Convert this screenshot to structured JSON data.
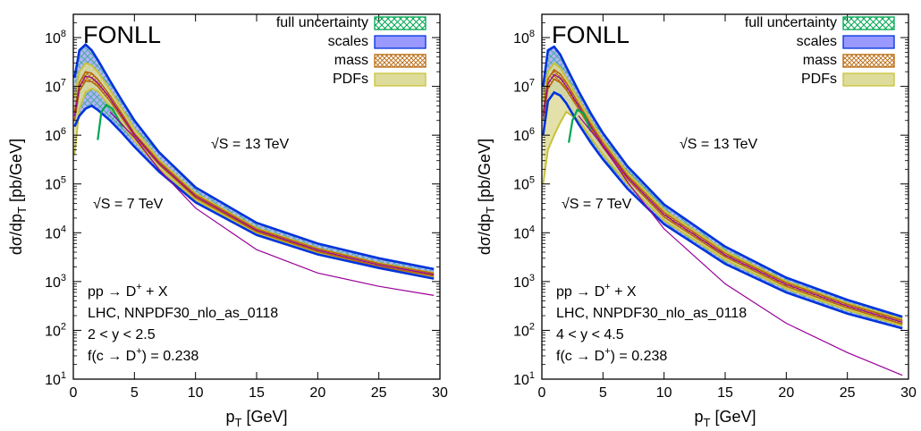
{
  "colors": {
    "full": "#00a651",
    "scales": "#0033dd",
    "scales_fill": "#9999ff",
    "mass": "#b8660b",
    "pdf": "#c8c23a",
    "pdf_fill": "#dedc9a",
    "purple": "#990099"
  },
  "chart_data": [
    {
      "type": "area",
      "title": "FONLL",
      "xlabel_main": "p",
      "xlabel_sub": "T",
      "xlabel_unit": " [GeV]",
      "ylabel_main": "dσ/dp",
      "ylabel_sub": "T",
      "ylabel_unit": " [pb/GeV]",
      "x_ticks": [
        "0",
        "5",
        "10",
        "15",
        "20",
        "25",
        "30"
      ],
      "y_ticks": [
        "10",
        "10",
        "10",
        "10",
        "10",
        "10",
        "10",
        "10"
      ],
      "y_tick_exponents": [
        "1",
        "2",
        "3",
        "4",
        "5",
        "6",
        "7",
        "8"
      ],
      "xlim": [
        0,
        30
      ],
      "ylim": [
        10,
        300000000
      ],
      "log_y": true,
      "legend": [
        "full uncertainty",
        "scales",
        "mass",
        "PDFs"
      ],
      "legend_position": "top-right",
      "annotations": {
        "energy_13": "√S = 13 TeV",
        "energy_7": "√S = 7 TeV",
        "process": "pp → D",
        "process_sup": "+",
        "process_tail": " + X",
        "config": "LHC, NNPDF30_nlo_as_0118",
        "rapidity": "2 < y < 2.5",
        "frag": "f(c → D",
        "frag_sup": "+",
        "frag_tail": ") = 0.238"
      },
      "series": [
        {
          "name": "scales",
          "x": [
            0.1,
            0.5,
            1,
            1.5,
            2,
            3,
            4,
            5,
            7,
            10,
            15,
            20,
            25,
            29.5
          ],
          "upper": [
            15000000,
            55000000,
            72000000,
            55000000,
            35000000,
            13000000,
            5000000,
            2000000,
            450000,
            85000,
            16000,
            6000,
            3000,
            1800
          ],
          "lower": [
            1500000,
            2500000,
            3500000,
            4000000,
            3300000,
            2000000,
            1100000,
            580000,
            180000,
            42000,
            9000,
            3600,
            1900,
            1150
          ]
        },
        {
          "name": "PDFs",
          "x": [
            0.1,
            0.5,
            1,
            1.5,
            2,
            3,
            4,
            5,
            7,
            10,
            15,
            20,
            25,
            29.5
          ],
          "upper": [
            6000000,
            20000000,
            30000000,
            27000000,
            20000000,
            8500000,
            3400000,
            1350000,
            320000,
            64000,
            12500,
            4800,
            2400,
            1500
          ],
          "lower": [
            400000,
            3500000,
            7500000,
            9000000,
            8000000,
            3800000,
            1700000,
            780000,
            210000,
            47000,
            10000,
            3900,
            2000,
            1250
          ]
        },
        {
          "name": "mass",
          "x": [
            0.1,
            0.5,
            1,
            1.5,
            2,
            3,
            4,
            5,
            7,
            10,
            15,
            20,
            25,
            29.5
          ],
          "upper": [
            3000000,
            12000000,
            20000000,
            18500000,
            14000000,
            6500000,
            2700000,
            1100000,
            290000,
            60000,
            12000,
            4700,
            2350,
            1480
          ],
          "lower": [
            2000000,
            8000000,
            13000000,
            12500000,
            10000000,
            5000000,
            2200000,
            950000,
            250000,
            52000,
            10500,
            4100,
            2050,
            1300
          ]
        },
        {
          "name": "full uncertainty (lower edge)",
          "x": [
            2,
            2.3,
            2.7,
            3.2,
            4
          ],
          "values": [
            800000,
            3000000,
            4200000,
            3500000,
            1500000
          ]
        },
        {
          "name": "√S = 7 TeV",
          "x": [
            3,
            5,
            7,
            10,
            15,
            20,
            25,
            29.5
          ],
          "values": [
            3000000,
            900000,
            200000,
            32000,
            4500,
            1500,
            800,
            520
          ]
        }
      ]
    },
    {
      "type": "area",
      "title": "FONLL",
      "xlabel_main": "p",
      "xlabel_sub": "T",
      "xlabel_unit": " [GeV]",
      "ylabel_main": "dσ/dp",
      "ylabel_sub": "T",
      "ylabel_unit": " [pb/GeV]",
      "x_ticks": [
        "0",
        "5",
        "10",
        "15",
        "20",
        "25",
        "30"
      ],
      "y_ticks": [
        "10",
        "10",
        "10",
        "10",
        "10",
        "10",
        "10",
        "10"
      ],
      "y_tick_exponents": [
        "1",
        "2",
        "3",
        "4",
        "5",
        "6",
        "7",
        "8"
      ],
      "xlim": [
        0,
        30
      ],
      "ylim": [
        10,
        300000000
      ],
      "log_y": true,
      "legend": [
        "full uncertainty",
        "scales",
        "mass",
        "PDFs"
      ],
      "legend_position": "top-right",
      "annotations": {
        "energy_13": "√S = 13 TeV",
        "energy_7": "√S = 7 TeV",
        "process": "pp → D",
        "process_sup": "+",
        "process_tail": " + X",
        "config": "LHC, NNPDF30_nlo_as_0118",
        "rapidity": "4 < y < 4.5",
        "frag": "f(c → D",
        "frag_sup": "+",
        "frag_tail": ") = 0.238"
      },
      "series": [
        {
          "name": "scales",
          "x": [
            0.1,
            0.5,
            1,
            1.5,
            2,
            3,
            4,
            5,
            7,
            10,
            15,
            20,
            25,
            29.5
          ],
          "upper": [
            10000000,
            55000000,
            65000000,
            45000000,
            25000000,
            8000000,
            2800000,
            1100000,
            230000,
            38000,
            5200,
            1200,
            420,
            190
          ],
          "lower": [
            1000000,
            5000000,
            7500000,
            6500000,
            4500000,
            1700000,
            700000,
            320000,
            80000,
            15000,
            2300,
            600,
            220,
            110
          ]
        },
        {
          "name": "PDFs",
          "x": [
            0.1,
            0.5,
            1,
            1.5,
            2,
            3,
            4,
            5,
            7,
            10,
            15,
            20,
            25,
            29.5
          ],
          "upper": [
            5000000,
            20000000,
            30000000,
            24000000,
            15000000,
            5500000,
            2000000,
            800000,
            170000,
            29000,
            4200,
            1000,
            360,
            170
          ],
          "lower": [
            100000,
            500000,
            1000000,
            1800000,
            3000000,
            2000000,
            900000,
            400000,
            100000,
            18000,
            2800,
            720,
            260,
            125
          ]
        },
        {
          "name": "mass",
          "x": [
            0.1,
            0.5,
            1,
            1.5,
            2,
            3,
            4,
            5,
            7,
            10,
            15,
            20,
            25,
            29.5
          ],
          "upper": [
            3000000,
            14000000,
            22000000,
            18000000,
            12000000,
            4500000,
            1700000,
            700000,
            150000,
            26000,
            3800,
            950,
            340,
            160
          ],
          "lower": [
            2000000,
            9000000,
            14000000,
            12000000,
            8500000,
            3500000,
            1350000,
            560000,
            125000,
            21000,
            3200,
            800,
            290,
            135
          ]
        },
        {
          "name": "full uncertainty (lower edge)",
          "x": [
            2.2,
            2.5,
            2.9,
            3.4,
            4
          ],
          "values": [
            700000,
            2000000,
            3300000,
            2800000,
            1200000
          ]
        },
        {
          "name": "√S = 7 TeV",
          "x": [
            3,
            5,
            7,
            10,
            15,
            20,
            25,
            29.5
          ],
          "values": [
            2500000,
            600000,
            110000,
            12000,
            900,
            140,
            35,
            12
          ]
        }
      ]
    }
  ]
}
